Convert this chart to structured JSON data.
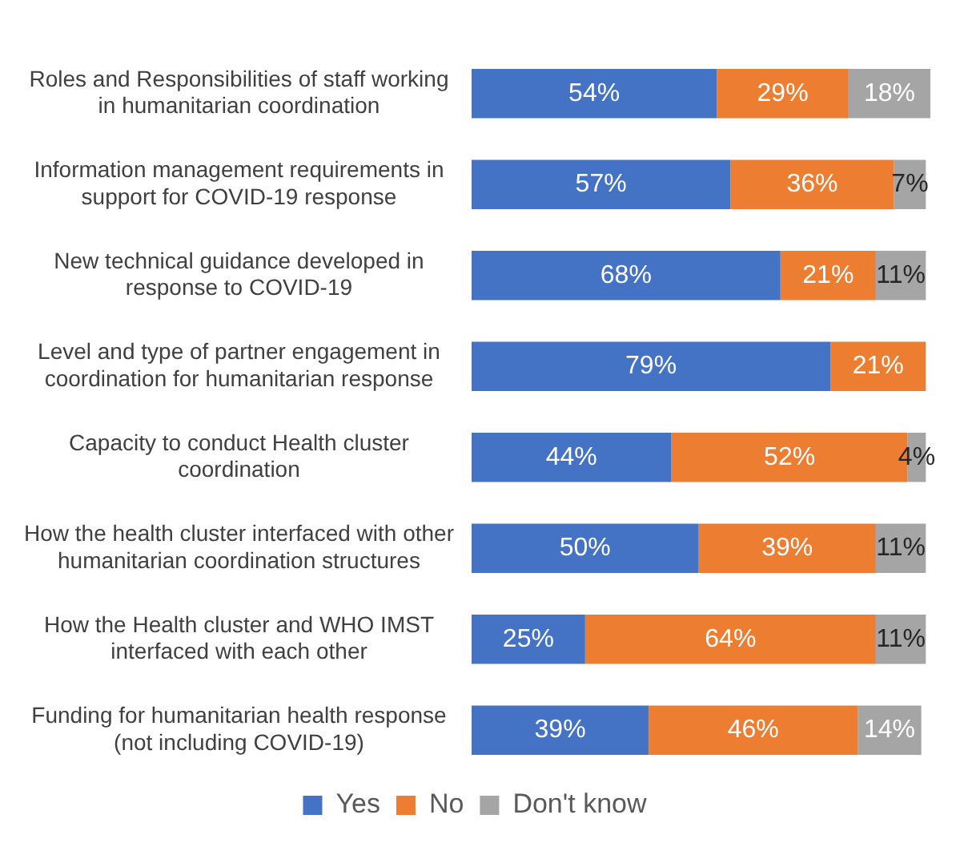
{
  "chart_data": {
    "type": "bar",
    "orientation": "horizontal",
    "stacked": true,
    "legend": "bottom",
    "categories": [
      "Roles and Responsibilities of staff working in humanitarian coordination",
      "Information management requirements in support for COVID-19 response",
      "New technical guidance developed in response to COVID-19",
      "Level and type of partner engagement in coordination for humanitarian response",
      "Capacity to conduct Health cluster coordination",
      "How the health cluster interfaced with other humanitarian coordination structures",
      "How the Health cluster and WHO IMST interfaced with each other",
      "Funding for humanitarian health response (not including COVID-19)"
    ],
    "series": [
      {
        "name": "Yes",
        "color": "#4472c4",
        "values": [
          54,
          57,
          68,
          79,
          44,
          50,
          25,
          39
        ],
        "value_labels": [
          "54%",
          "57%",
          "68%",
          "79%",
          "44%",
          "50%",
          "25%",
          "39%"
        ]
      },
      {
        "name": "No",
        "color": "#ed7d31",
        "values": [
          29,
          36,
          21,
          21,
          52,
          39,
          64,
          46
        ],
        "value_labels": [
          "29%",
          "36%",
          "21%",
          "21%",
          "52%",
          "39%",
          "64%",
          "46%"
        ]
      },
      {
        "name": "Don't know",
        "color": "#a5a5a5",
        "values": [
          18,
          7,
          11,
          null,
          4,
          11,
          11,
          14
        ],
        "value_labels": [
          "18%",
          "7%",
          "11%",
          null,
          "4%",
          "11%",
          "11%",
          "14%"
        ]
      }
    ]
  }
}
